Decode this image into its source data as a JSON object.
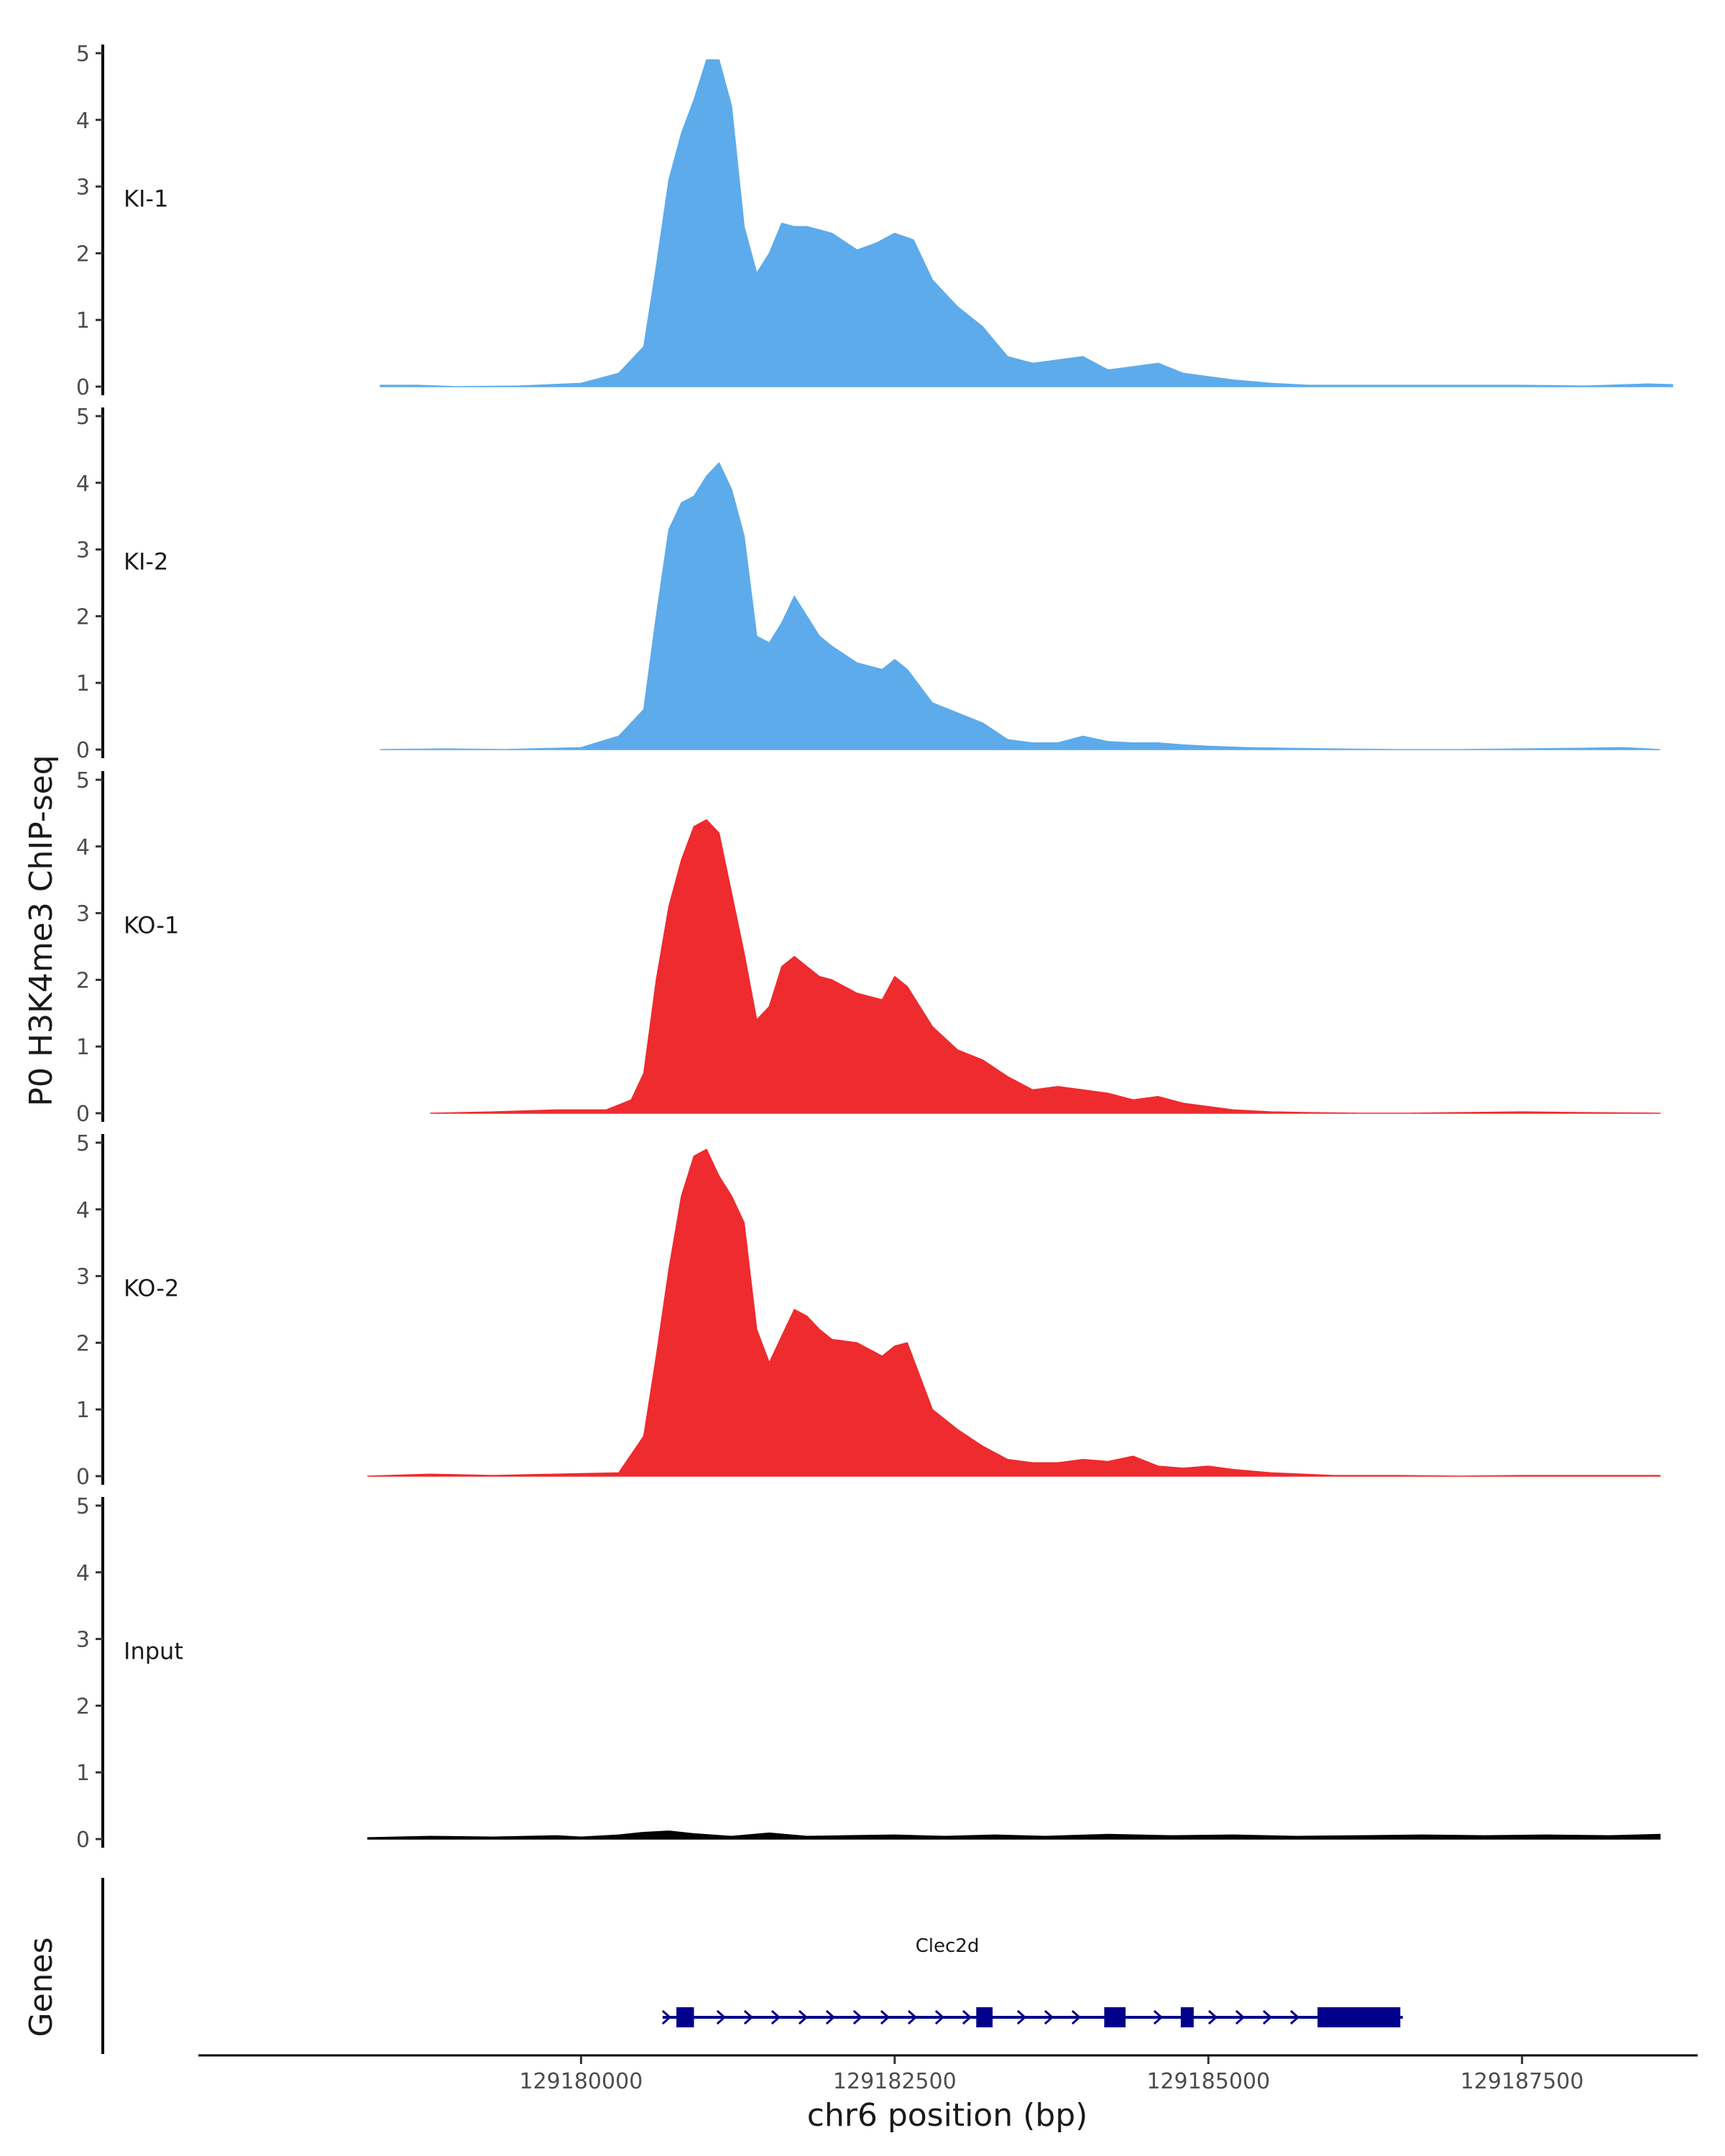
{
  "chart_data": {
    "type": "area",
    "ylabel": "P0 H3K4me3 ChIP-seq",
    "xlabel": "chr6 position (bp)",
    "ylim": [
      0,
      5
    ],
    "y_ticks": [
      "0",
      "1",
      "2",
      "3",
      "4",
      "5"
    ],
    "xlim": [
      129176950,
      129188900
    ],
    "x_ticks": [
      129180000,
      129182500,
      129185000,
      129187500
    ],
    "x_tick_labels": [
      "129180000",
      "129182500",
      "129185000",
      "129187500"
    ],
    "tracks": [
      {
        "name": "KI-1",
        "color": "#5dabeb",
        "x": [
          129178400,
          129178700,
          129179000,
          129179500,
          129180000,
          129180300,
          129180500,
          129180600,
          129180700,
          129180800,
          129180900,
          129181000,
          129181100,
          129181200,
          129181300,
          129181400,
          129181500,
          129181600,
          129181700,
          129181800,
          129181900,
          129182000,
          129182200,
          129182350,
          129182500,
          129182650,
          129182800,
          129183000,
          129183200,
          129183400,
          129183600,
          129183800,
          129184000,
          129184200,
          129184400,
          129184600,
          129184800,
          129185000,
          129185200,
          129185500,
          129185800,
          129186200,
          129186600,
          129187000,
          129187500,
          129188000,
          129188500,
          129188700
        ],
        "y": [
          0.02,
          0.02,
          0.0,
          0.01,
          0.05,
          0.2,
          0.6,
          1.8,
          3.1,
          3.8,
          4.3,
          4.9,
          4.9,
          4.2,
          2.4,
          1.7,
          2.0,
          2.45,
          2.4,
          2.4,
          2.35,
          2.3,
          2.05,
          2.15,
          2.3,
          2.2,
          1.6,
          1.2,
          0.9,
          0.45,
          0.35,
          0.4,
          0.45,
          0.25,
          0.3,
          0.35,
          0.2,
          0.15,
          0.1,
          0.05,
          0.02,
          0.02,
          0.02,
          0.02,
          0.02,
          0.01,
          0.04,
          0.03
        ]
      },
      {
        "name": "KI-2",
        "color": "#5dabeb",
        "x": [
          129178400,
          129178900,
          129179400,
          129180000,
          129180300,
          129180500,
          129180600,
          129180700,
          129180800,
          129180900,
          129181000,
          129181100,
          129181200,
          129181300,
          129181400,
          129181500,
          129181600,
          129181700,
          129181800,
          129181900,
          129182000,
          129182200,
          129182400,
          129182500,
          129182600,
          129182800,
          129183000,
          129183200,
          129183400,
          129183600,
          129183800,
          129184000,
          129184200,
          129184400,
          129184600,
          129184800,
          129185000,
          129185300,
          129185600,
          129186000,
          129186500,
          129187000,
          129187500,
          129188000,
          129188300,
          129188600
        ],
        "y": [
          0.0,
          0.01,
          0.0,
          0.03,
          0.2,
          0.6,
          2.0,
          3.3,
          3.7,
          3.8,
          4.1,
          4.3,
          3.9,
          3.2,
          1.7,
          1.6,
          1.9,
          2.3,
          2.0,
          1.7,
          1.55,
          1.3,
          1.2,
          1.35,
          1.2,
          0.7,
          0.55,
          0.4,
          0.15,
          0.1,
          0.1,
          0.2,
          0.12,
          0.1,
          0.1,
          0.07,
          0.05,
          0.03,
          0.02,
          0.01,
          0.0,
          0.0,
          0.01,
          0.02,
          0.03,
          0.0
        ]
      },
      {
        "name": "KO-1",
        "color": "#ee2b2f",
        "x": [
          129178800,
          129179300,
          129179800,
          129180200,
          129180400,
          129180500,
          129180600,
          129180700,
          129180800,
          129180900,
          129181000,
          129181100,
          129181200,
          129181300,
          129181400,
          129181500,
          129181600,
          129181700,
          129181800,
          129181900,
          129182000,
          129182200,
          129182400,
          129182500,
          129182600,
          129182800,
          129183000,
          129183200,
          129183400,
          129183600,
          129183800,
          129184000,
          129184200,
          129184400,
          129184600,
          129184800,
          129185000,
          129185200,
          129185500,
          129185800,
          129186200,
          129186600,
          129187000,
          129187500,
          129188000,
          129188600
        ],
        "y": [
          0.0,
          0.02,
          0.05,
          0.05,
          0.2,
          0.6,
          2.0,
          3.1,
          3.8,
          4.3,
          4.4,
          4.2,
          3.3,
          2.4,
          1.4,
          1.6,
          2.2,
          2.35,
          2.2,
          2.05,
          2.0,
          1.8,
          1.7,
          2.05,
          1.9,
          1.3,
          0.95,
          0.8,
          0.55,
          0.35,
          0.4,
          0.35,
          0.3,
          0.2,
          0.25,
          0.15,
          0.1,
          0.05,
          0.02,
          0.01,
          0.0,
          0.0,
          0.01,
          0.02,
          0.01,
          0.0
        ]
      },
      {
        "name": "KO-2",
        "color": "#ee2b2f",
        "x": [
          129178300,
          129178800,
          129179300,
          129179800,
          129180300,
          129180500,
          129180600,
          129180700,
          129180800,
          129180900,
          129181000,
          129181100,
          129181200,
          129181300,
          129181400,
          129181500,
          129181600,
          129181700,
          129181800,
          129181900,
          129182000,
          129182200,
          129182400,
          129182500,
          129182600,
          129182800,
          129183000,
          129183200,
          129183400,
          129183600,
          129183800,
          129184000,
          129184200,
          129184400,
          129184600,
          129184800,
          129185000,
          129185200,
          129185500,
          129186000,
          129186500,
          129187000,
          129187500,
          129188000,
          129188600
        ],
        "y": [
          0.0,
          0.03,
          0.01,
          0.03,
          0.05,
          0.6,
          1.8,
          3.1,
          4.2,
          4.8,
          4.9,
          4.5,
          4.2,
          3.8,
          2.2,
          1.7,
          2.1,
          2.5,
          2.4,
          2.2,
          2.05,
          2.0,
          1.8,
          1.95,
          2.0,
          1.0,
          0.7,
          0.45,
          0.25,
          0.2,
          0.2,
          0.25,
          0.22,
          0.3,
          0.15,
          0.12,
          0.15,
          0.1,
          0.05,
          0.01,
          0.01,
          0.0,
          0.01,
          0.01,
          0.01
        ]
      },
      {
        "name": "Input",
        "color": "#000000",
        "x": [
          129178300,
          129178800,
          129179300,
          129179800,
          129180000,
          129180300,
          129180500,
          129180700,
          129180900,
          129181200,
          129181500,
          129181800,
          129182100,
          129182500,
          129182900,
          129183300,
          129183700,
          129184200,
          129184700,
          129185200,
          129185700,
          129186200,
          129186700,
          129187200,
          129187700,
          129188200,
          129188600
        ],
        "y": [
          0.02,
          0.04,
          0.03,
          0.05,
          0.03,
          0.06,
          0.1,
          0.12,
          0.08,
          0.04,
          0.09,
          0.04,
          0.05,
          0.06,
          0.04,
          0.06,
          0.04,
          0.07,
          0.05,
          0.06,
          0.04,
          0.05,
          0.06,
          0.05,
          0.06,
          0.05,
          0.07
        ]
      }
    ],
    "gene_track": {
      "axis_label": "Genes",
      "gene_name": "Clec2d",
      "color": "#00008b",
      "start": 129180650,
      "end": 129186550,
      "exons": [
        [
          129180760,
          129180900
        ],
        [
          129183150,
          129183280
        ],
        [
          129184170,
          129184340
        ],
        [
          129184780,
          129184870
        ],
        [
          129185870,
          129186530
        ]
      ]
    }
  }
}
